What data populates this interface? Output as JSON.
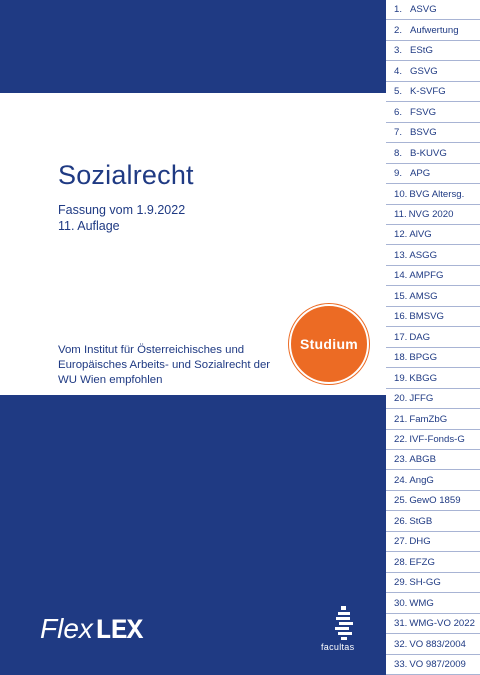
{
  "title": "Sozialrecht",
  "edition": {
    "line1": "Fassung vom 1.9.2022",
    "line2": "11. Auflage"
  },
  "endorsement": {
    "line1": "Vom Institut für Österreichisches und",
    "line2": "Europäisches Arbeits- und Sozialrecht der",
    "line3": "WU Wien empfohlen"
  },
  "badge": "Studium",
  "brand": {
    "flex": "Flex",
    "lex": "LEX"
  },
  "publisher": "facultas",
  "colors": {
    "navy": "#1f3a83",
    "orange": "#ec6b24"
  },
  "register": [
    {
      "num": "1.",
      "label": "ASVG"
    },
    {
      "num": "2.",
      "label": "Aufwertung"
    },
    {
      "num": "3.",
      "label": "EStG"
    },
    {
      "num": "4.",
      "label": "GSVG"
    },
    {
      "num": "5.",
      "label": "K-SVFG"
    },
    {
      "num": "6.",
      "label": "FSVG"
    },
    {
      "num": "7.",
      "label": "BSVG"
    },
    {
      "num": "8.",
      "label": "B-KUVG"
    },
    {
      "num": "9.",
      "label": "APG"
    },
    {
      "num": "10.",
      "label": "BVG Altersg."
    },
    {
      "num": "11.",
      "label": "NVG 2020"
    },
    {
      "num": "12.",
      "label": "AlVG"
    },
    {
      "num": "13.",
      "label": "ASGG"
    },
    {
      "num": "14.",
      "label": "AMPFG"
    },
    {
      "num": "15.",
      "label": "AMSG"
    },
    {
      "num": "16.",
      "label": "BMSVG"
    },
    {
      "num": "17.",
      "label": "DAG"
    },
    {
      "num": "18.",
      "label": "BPGG"
    },
    {
      "num": "19.",
      "label": "KBGG"
    },
    {
      "num": "20.",
      "label": "JFFG"
    },
    {
      "num": "21.",
      "label": "FamZbG"
    },
    {
      "num": "22.",
      "label": "IVF-Fonds-G"
    },
    {
      "num": "23.",
      "label": "ABGB"
    },
    {
      "num": "24.",
      "label": "AngG"
    },
    {
      "num": "25.",
      "label": "GewO 1859"
    },
    {
      "num": "26.",
      "label": "StGB"
    },
    {
      "num": "27.",
      "label": "DHG"
    },
    {
      "num": "28.",
      "label": "EFZG"
    },
    {
      "num": "29.",
      "label": "SH-GG"
    },
    {
      "num": "30.",
      "label": "WMG"
    },
    {
      "num": "31.",
      "label": "WMG-VO 2022"
    },
    {
      "num": "32.",
      "label": "VO 883/2004"
    },
    {
      "num": "33.",
      "label": "VO 987/2009"
    }
  ]
}
